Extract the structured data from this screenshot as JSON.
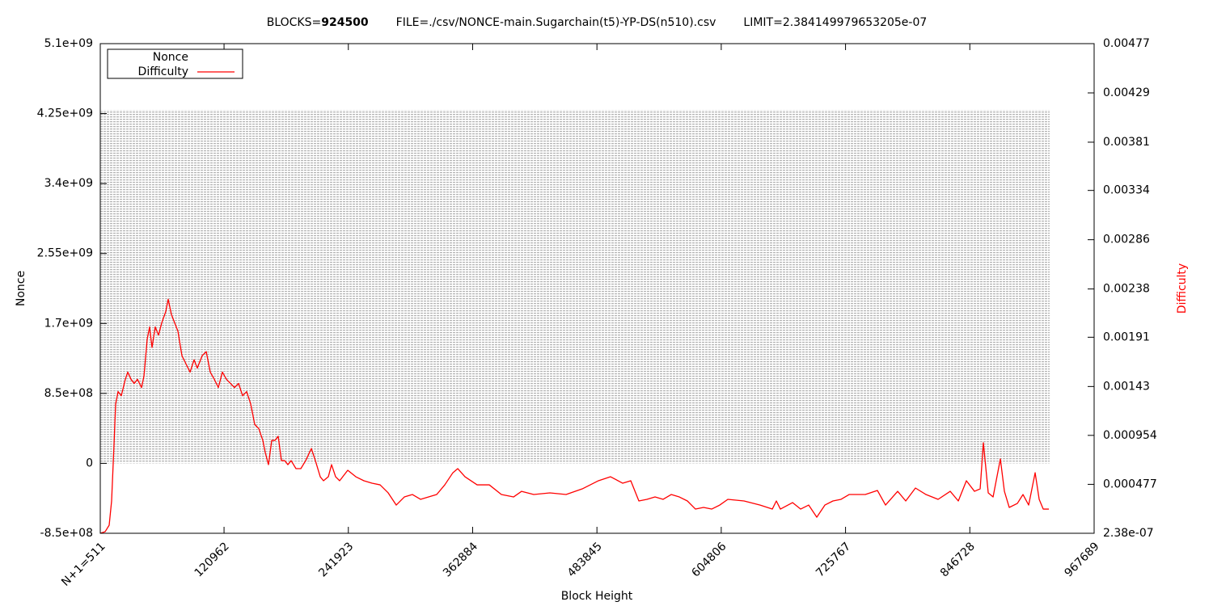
{
  "chart_data": {
    "type": "line",
    "title_parts": [
      "BLOCKS=",
      "924500",
      "FILE=./csv/NONCE-main.Sugarchain(t5)-YP-DS(n510).csv",
      "LIMIT=2.384149979653205e-07"
    ],
    "x_label": "Block Height",
    "y_label": "Nonce",
    "y2_label": "Difficulty",
    "xlim": [
      511,
      967689
    ],
    "xticks": [
      {
        "value": 511,
        "label": "N+1=511"
      },
      120962,
      241923,
      362884,
      483845,
      604806,
      725767,
      846728,
      967689
    ],
    "ylim": [
      -850000000,
      5100000000
    ],
    "yticks": [
      {
        "value": -850000000,
        "label": "-8.5e+08"
      },
      0,
      {
        "value": 850000000,
        "label": "8.5e+08"
      },
      {
        "value": 1700000000,
        "label": "1.7e+09"
      },
      {
        "value": 2550000000,
        "label": "2.55e+09"
      },
      {
        "value": 3400000000,
        "label": "3.4e+09"
      },
      {
        "value": 4250000000,
        "label": "4.25e+09"
      },
      {
        "value": 5100000000,
        "label": "5.1e+09"
      }
    ],
    "y2lim": [
      2.38e-07,
      0.00477
    ],
    "y2ticks": [
      {
        "value": 2.38e-07,
        "label": "2.38e-07"
      },
      0.000477,
      0.000954,
      0.00143,
      0.00191,
      0.00238,
      0.00286,
      0.00334,
      0.00381,
      0.00429,
      0.00477
    ],
    "legend": "top-left",
    "series": [
      {
        "name": "Nonce",
        "color": "#b4b4b4",
        "style": "range",
        "x": [
          511,
          924500
        ],
        "low": [
          0,
          0
        ],
        "values": [
          4294967295,
          4294967295
        ]
      },
      {
        "name": "Difficulty",
        "color": "#ff0000",
        "axis": "y2",
        "x": [
          511,
          5233,
          9168,
          11529,
          13890,
          15464,
          17825,
          20973,
          24908,
          27269,
          30417,
          33565,
          36713,
          40648,
          43009,
          46157,
          48518,
          50879,
          54027,
          57175,
          60323,
          64258,
          66619,
          69767,
          72915,
          76063,
          79998,
          83933,
          87868,
          91803,
          94951,
          99673,
          103608,
          107543,
          111478,
          115413,
          119348,
          123283,
          127218,
          131153,
          135088,
          139023,
          142958,
          146893,
          150828,
          154763,
          158698,
          161059,
          164207,
          167355,
          170503,
          173651,
          176799,
          179947,
          183095,
          186243,
          190965,
          195687,
          200409,
          205918,
          209853,
          214575,
          217723,
          222445,
          225593,
          229528,
          233463,
          241333,
          249203,
          257073,
          264943,
          272813,
          280683,
          288553,
          296423,
          304293,
          312163,
          320033,
          327903,
          335773,
          343643,
          348365,
          355448,
          367253,
          379058,
          390863,
          402668,
          410538,
          422343,
          438083,
          453823,
          469563,
          485303,
          497108,
          508913,
          516783,
          524653,
          532523,
          540393,
          548263,
          556133,
          564003,
          571873,
          579743,
          587613,
          595483,
          603353,
          611223,
          626963,
          642703,
          654508,
          658443,
          662378,
          674183,
          682053,
          689923,
          697793,
          705663,
          713533,
          721403,
          729273,
          745013,
          756818,
          764688,
          776493,
          784363,
          793807,
          804038,
          815843,
          827648,
          835518,
          843388,
          851258,
          856767,
          859915,
          864637,
          869359,
          876442,
          880377,
          885099,
          892969,
          898478,
          903987,
          910283,
          914218,
          918153,
          923662
        ],
        "values": [
          3e-07,
          1.57e-05,
          7.87e-05,
          0.000315,
          0.000866,
          0.00126,
          0.00138,
          0.00134,
          0.0015,
          0.00157,
          0.0015,
          0.00146,
          0.0015,
          0.00142,
          0.00153,
          0.00189,
          0.00201,
          0.00181,
          0.00201,
          0.00193,
          0.00205,
          0.00216,
          0.00228,
          0.00213,
          0.00205,
          0.00197,
          0.00173,
          0.00165,
          0.00157,
          0.00169,
          0.00161,
          0.00173,
          0.00177,
          0.00157,
          0.0015,
          0.00142,
          0.00157,
          0.0015,
          0.00146,
          0.00142,
          0.00146,
          0.00134,
          0.00138,
          0.00126,
          0.00106,
          0.00102,
          0.000905,
          0.000787,
          0.000669,
          0.000905,
          0.000905,
          0.000945,
          0.000708,
          0.000708,
          0.000669,
          0.000708,
          0.00063,
          0.00063,
          0.000708,
          0.000826,
          0.000708,
          0.000551,
          0.000512,
          0.000551,
          0.000669,
          0.000551,
          0.000512,
          0.000614,
          0.000551,
          0.000512,
          0.000488,
          0.000472,
          0.000394,
          0.000275,
          0.000354,
          0.000378,
          0.000331,
          0.000354,
          0.000378,
          0.000472,
          0.00059,
          0.00063,
          0.000551,
          0.000472,
          0.000472,
          0.000378,
          0.000354,
          0.000409,
          0.000378,
          0.000394,
          0.000378,
          0.000433,
          0.000512,
          0.000551,
          0.000488,
          0.000512,
          0.000315,
          0.000331,
          0.000354,
          0.000331,
          0.000378,
          0.000354,
          0.000315,
          0.000236,
          0.000252,
          0.000236,
          0.000275,
          0.000331,
          0.000315,
          0.000275,
          0.000236,
          0.000315,
          0.000236,
          0.000299,
          0.000236,
          0.000275,
          0.000157,
          0.000275,
          0.000315,
          0.000331,
          0.000378,
          0.000378,
          0.000417,
          0.000275,
          0.000409,
          0.000315,
          0.000441,
          0.000378,
          0.000331,
          0.000409,
          0.000315,
          0.000512,
          0.000409,
          0.000433,
          0.000882,
          0.000394,
          0.000354,
          0.000724,
          0.000409,
          0.000252,
          0.000291,
          0.000378,
          0.000275,
          0.00059,
          0.000331,
          0.000236,
          0.000236
        ]
      }
    ]
  }
}
